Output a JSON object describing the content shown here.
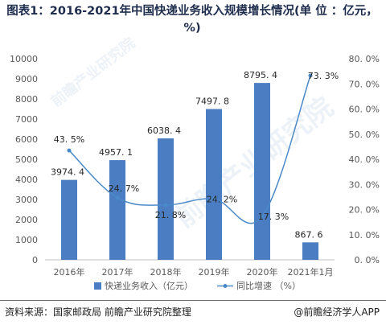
{
  "title": "图表1：2016-2021年中国快递业务收入规模增长情况(单 位 ：亿元，%)",
  "source": "资料来源：国家邮政局 前瞻产业研究院整理",
  "brand": "@前瞻经济学人APP",
  "watermark": "前瞻产业研究院",
  "chart_data": {
    "type": "bar",
    "categories": [
      "2016年",
      "2017年",
      "2018年",
      "2019年",
      "2020年",
      "2021年1月"
    ],
    "series": [
      {
        "name": "快递业务收入（亿元）",
        "type": "bar",
        "axis": "left",
        "values": [
          3974.4,
          4957.1,
          6038.4,
          7497.8,
          8795.4,
          867.6
        ],
        "labels": [
          "3974. 4",
          "4957. 1",
          "6038. 4",
          "7497. 8",
          "8795. 4",
          "867. 6"
        ]
      },
      {
        "name": "同比增速 （%）",
        "type": "line",
        "axis": "right",
        "values": [
          43.5,
          24.7,
          21.8,
          24.2,
          17.3,
          73.3
        ],
        "labels": [
          "43. 5%",
          "24. 7%",
          "21. 8%",
          "24. 2%",
          "17. 3%",
          "73. 3%"
        ]
      }
    ],
    "y_left": {
      "min": 0,
      "max": 10000,
      "ticks": [
        "0",
        "1000",
        "2000",
        "3000",
        "4000",
        "5000",
        "6000",
        "7000",
        "8000",
        "9000",
        "10000"
      ]
    },
    "y_right": {
      "min": 0,
      "max": 80,
      "ticks": [
        "0. 0%",
        "10. 0%",
        "20. 0%",
        "30. 0%",
        "40. 0%",
        "50. 0%",
        "60. 0%",
        "70. 0%",
        "80. 0%"
      ]
    },
    "grid": false,
    "legend_position": "bottom",
    "colors": {
      "bar": "#4a7dc1",
      "line": "#4b8ac9",
      "text": "#595959"
    }
  }
}
